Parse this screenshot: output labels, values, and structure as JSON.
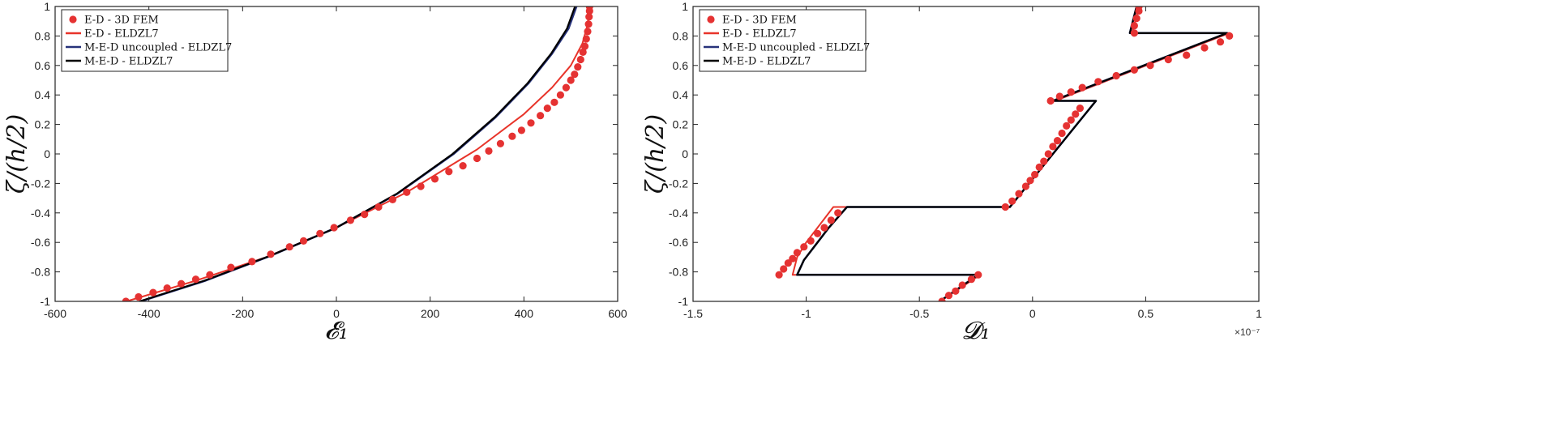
{
  "colors": {
    "fem": "#e53232",
    "ed": "#e8342a",
    "med_uncoupled": "#27327a",
    "med": "#000000"
  },
  "chart_data": [
    {
      "type": "line",
      "ylabel": "ζ/(h/2)",
      "xlabel": "𝓔₁",
      "xlim": [
        -600,
        600
      ],
      "ylim": [
        -1,
        1
      ],
      "xticks": [
        "-600",
        "-400",
        "-200",
        "0",
        "200",
        "400",
        "600"
      ],
      "yticks": [
        "-1",
        "-0.8",
        "-0.6",
        "-0.4",
        "-0.2",
        "0",
        "0.2",
        "0.4",
        "0.6",
        "0.8",
        "1"
      ],
      "grid": false,
      "legend_position": "top-left",
      "legend": [
        "E-D - 3D FEM",
        "E-D - ELDZL7",
        "M-E-D uncoupled - ELDZL7",
        "M-E-D - ELDZL7"
      ],
      "series": [
        {
          "name": "E-D - 3D FEM",
          "style": "markers",
          "points": [
            [
              -449,
              -1
            ],
            [
              -422,
              -0.97
            ],
            [
              -391,
              -0.94
            ],
            [
              -361,
              -0.91
            ],
            [
              -331,
              -0.88
            ],
            [
              -300,
              -0.85
            ],
            [
              -270,
              -0.82
            ],
            [
              -225,
              -0.77
            ],
            [
              -180,
              -0.73
            ],
            [
              -140,
              -0.68
            ],
            [
              -100,
              -0.63
            ],
            [
              -70,
              -0.59
            ],
            [
              -35,
              -0.54
            ],
            [
              -5,
              -0.5
            ],
            [
              30,
              -0.45
            ],
            [
              60,
              -0.41
            ],
            [
              90,
              -0.36
            ],
            [
              120,
              -0.31
            ],
            [
              150,
              -0.26
            ],
            [
              180,
              -0.22
            ],
            [
              210,
              -0.17
            ],
            [
              240,
              -0.12
            ],
            [
              270,
              -0.08
            ],
            [
              300,
              -0.03
            ],
            [
              325,
              0.02
            ],
            [
              350,
              0.07
            ],
            [
              375,
              0.12
            ],
            [
              395,
              0.16
            ],
            [
              415,
              0.21
            ],
            [
              435,
              0.26
            ],
            [
              450,
              0.31
            ],
            [
              465,
              0.35
            ],
            [
              478,
              0.4
            ],
            [
              490,
              0.45
            ],
            [
              500,
              0.5
            ],
            [
              508,
              0.54
            ],
            [
              515,
              0.59
            ],
            [
              521,
              0.64
            ],
            [
              526,
              0.69
            ],
            [
              530,
              0.73
            ],
            [
              533,
              0.78
            ],
            [
              536,
              0.83
            ],
            [
              538,
              0.88
            ],
            [
              539,
              0.93
            ],
            [
              540,
              0.97
            ],
            [
              540,
              1.0
            ]
          ]
        },
        {
          "name": "E-D - ELDZL7",
          "style": "line",
          "points": [
            [
              -448,
              -1
            ],
            [
              -300,
              -0.86
            ],
            [
              -150,
              -0.7
            ],
            [
              0,
              -0.5
            ],
            [
              150,
              -0.26
            ],
            [
              300,
              0.03
            ],
            [
              400,
              0.27
            ],
            [
              460,
              0.45
            ],
            [
              500,
              0.6
            ],
            [
              525,
              0.75
            ],
            [
              536,
              0.88
            ],
            [
              540,
              1.0
            ]
          ]
        },
        {
          "name": "M-E-D uncoupled - ELDZL7",
          "style": "line",
          "points": [
            [
              -418,
              -1
            ],
            [
              -280,
              -0.86
            ],
            [
              -140,
              -0.69
            ],
            [
              0,
              -0.5
            ],
            [
              130,
              -0.27
            ],
            [
              250,
              0.0
            ],
            [
              340,
              0.25
            ],
            [
              410,
              0.48
            ],
            [
              460,
              0.68
            ],
            [
              495,
              0.85
            ],
            [
              512,
              1.0
            ]
          ]
        },
        {
          "name": "M-E-D - ELDZL7",
          "style": "line",
          "points": [
            [
              -420,
              -1
            ],
            [
              -282,
              -0.86
            ],
            [
              -141,
              -0.69
            ],
            [
              0,
              -0.5
            ],
            [
              129,
              -0.27
            ],
            [
              248,
              0.0
            ],
            [
              338,
              0.25
            ],
            [
              408,
              0.48
            ],
            [
              458,
              0.68
            ],
            [
              492,
              0.85
            ],
            [
              509,
              1.0
            ]
          ]
        }
      ]
    },
    {
      "type": "line",
      "ylabel": "ζ/(h/2)",
      "xlabel": "𝓓₁",
      "x_multiplier": "×10⁻⁷",
      "xlim": [
        -1.5,
        1
      ],
      "ylim": [
        -1,
        1
      ],
      "xticks": [
        "-1.5",
        "-1",
        "-0.5",
        "0",
        "0.5",
        "1"
      ],
      "yticks": [
        "-1",
        "-0.8",
        "-0.6",
        "-0.4",
        "-0.2",
        "0",
        "0.2",
        "0.4",
        "0.6",
        "0.8",
        "1"
      ],
      "grid": false,
      "legend_position": "top-left",
      "legend": [
        "E-D - 3D FEM",
        "E-D - ELDZL7",
        "M-E-D uncoupled - ELDZL7",
        "M-E-D - ELDZL7"
      ],
      "series": [
        {
          "name": "E-D - 3D FEM",
          "style": "markers",
          "points": [
            [
              -0.4,
              -1
            ],
            [
              -0.37,
              -0.96
            ],
            [
              -0.34,
              -0.93
            ],
            [
              -0.31,
              -0.89
            ],
            [
              -0.27,
              -0.85
            ],
            [
              -0.24,
              -0.82
            ],
            [
              -1.12,
              -0.82
            ],
            [
              -1.1,
              -0.78
            ],
            [
              -1.08,
              -0.74
            ],
            [
              -1.06,
              -0.71
            ],
            [
              -1.04,
              -0.67
            ],
            [
              -1.01,
              -0.63
            ],
            [
              -0.98,
              -0.59
            ],
            [
              -0.95,
              -0.54
            ],
            [
              -0.92,
              -0.5
            ],
            [
              -0.89,
              -0.45
            ],
            [
              -0.86,
              -0.4
            ],
            [
              -0.12,
              -0.36
            ],
            [
              -0.09,
              -0.32
            ],
            [
              -0.06,
              -0.27
            ],
            [
              -0.03,
              -0.22
            ],
            [
              -0.01,
              -0.18
            ],
            [
              0.01,
              -0.14
            ],
            [
              0.03,
              -0.09
            ],
            [
              0.05,
              -0.05
            ],
            [
              0.07,
              0.0
            ],
            [
              0.09,
              0.05
            ],
            [
              0.11,
              0.09
            ],
            [
              0.13,
              0.14
            ],
            [
              0.15,
              0.19
            ],
            [
              0.17,
              0.23
            ],
            [
              0.19,
              0.27
            ],
            [
              0.21,
              0.31
            ],
            [
              0.08,
              0.36
            ],
            [
              0.12,
              0.39
            ],
            [
              0.17,
              0.42
            ],
            [
              0.22,
              0.45
            ],
            [
              0.29,
              0.49
            ],
            [
              0.37,
              0.53
            ],
            [
              0.45,
              0.57
            ],
            [
              0.52,
              0.6
            ],
            [
              0.6,
              0.64
            ],
            [
              0.68,
              0.67
            ],
            [
              0.76,
              0.72
            ],
            [
              0.83,
              0.76
            ],
            [
              0.87,
              0.8
            ],
            [
              0.45,
              0.82
            ],
            [
              0.45,
              0.87
            ],
            [
              0.46,
              0.92
            ],
            [
              0.47,
              0.97
            ],
            [
              0.47,
              1.0
            ]
          ]
        },
        {
          "name": "E-D - ELDZL7",
          "style": "line",
          "points": [
            [
              -0.41,
              -1
            ],
            [
              -0.23,
              -0.82
            ],
            [
              -1.06,
              -0.82
            ],
            [
              -1.04,
              -0.7
            ],
            [
              -1.0,
              -0.6
            ],
            [
              -0.95,
              -0.5
            ],
            [
              -0.88,
              -0.36
            ],
            [
              -0.1,
              -0.36
            ],
            [
              0.28,
              0.36
            ],
            [
              0.1,
              0.36
            ],
            [
              0.87,
              0.82
            ],
            [
              0.44,
              0.82
            ],
            [
              0.47,
              1.0
            ]
          ]
        },
        {
          "name": "M-E-D uncoupled - ELDZL7",
          "style": "line",
          "points": [
            [
              -0.41,
              -1
            ],
            [
              -0.24,
              -0.82
            ],
            [
              -1.04,
              -0.82
            ],
            [
              -1.01,
              -0.72
            ],
            [
              -0.96,
              -0.62
            ],
            [
              -0.9,
              -0.5
            ],
            [
              -0.82,
              -0.36
            ],
            [
              -0.1,
              -0.36
            ],
            [
              0.28,
              0.36
            ],
            [
              0.09,
              0.36
            ],
            [
              0.86,
              0.82
            ],
            [
              0.43,
              0.82
            ],
            [
              0.46,
              1.0
            ]
          ]
        },
        {
          "name": "M-E-D - ELDZL7",
          "style": "line",
          "points": [
            [
              -0.41,
              -1
            ],
            [
              -0.24,
              -0.82
            ],
            [
              -1.04,
              -0.82
            ],
            [
              -1.01,
              -0.72
            ],
            [
              -0.96,
              -0.62
            ],
            [
              -0.9,
              -0.5
            ],
            [
              -0.82,
              -0.36
            ],
            [
              -0.1,
              -0.36
            ],
            [
              0.28,
              0.36
            ],
            [
              0.09,
              0.36
            ],
            [
              0.86,
              0.82
            ],
            [
              0.43,
              0.82
            ],
            [
              0.46,
              1.0
            ]
          ]
        }
      ]
    }
  ]
}
